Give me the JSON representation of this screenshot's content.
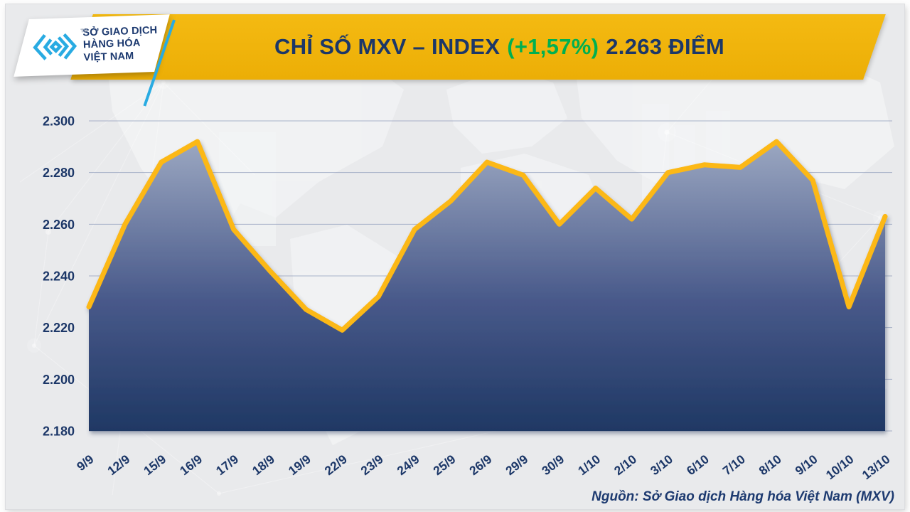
{
  "header": {
    "logo": {
      "lines": [
        "SỞ GIAO DỊCH",
        "HÀNG HÓA",
        "VIỆT NAM"
      ],
      "trademark": "TM"
    },
    "title": {
      "part1": "CHỈ SỐ MXV – INDEX",
      "change": "(+1,57%)",
      "part2": "2.263 ĐIỂM"
    }
  },
  "chart_data": {
    "type": "area",
    "title": "CHỈ SỐ MXV – INDEX (+1,57%) 2.263 ĐIỂM",
    "series_name": "MXV-Index",
    "categories": [
      "9/9",
      "12/9",
      "15/9",
      "16/9",
      "17/9",
      "18/9",
      "19/9",
      "22/9",
      "23/9",
      "24/9",
      "25/9",
      "26/9",
      "29/9",
      "30/9",
      "1/10",
      "2/10",
      "3/10",
      "6/10",
      "7/10",
      "8/10",
      "9/10",
      "10/10",
      "13/10"
    ],
    "values": [
      2228,
      2260,
      2284,
      2292,
      2258,
      2242,
      2227,
      2219,
      2232,
      2258,
      2269,
      2284,
      2279,
      2260,
      2274,
      2262,
      2280,
      2283,
      2282,
      2292,
      2277,
      2228,
      2263
    ],
    "last_value_label": "2.263",
    "change_label": "+1,57%",
    "y_ticks": [
      {
        "value": 2300,
        "label": "2.300"
      },
      {
        "value": 2280,
        "label": "2.280"
      },
      {
        "value": 2260,
        "label": "2.260"
      },
      {
        "value": 2240,
        "label": "2.240"
      },
      {
        "value": 2220,
        "label": "2.220"
      },
      {
        "value": 2200,
        "label": "2.200"
      },
      {
        "value": 2180,
        "label": "2.180"
      }
    ],
    "ylim": [
      2180,
      2300
    ],
    "xlabel": "",
    "ylabel": "",
    "grid": true,
    "legend": "none"
  },
  "footer": {
    "source": "Nguồn: Sở Giao dịch Hàng hóa Việt Nam (MXV)"
  },
  "colors": {
    "line_gold": "#fcb813",
    "banner_gold": "#f1b50c",
    "navy": "#1c3768",
    "green": "#00b050",
    "logo_blue": "#29abe2",
    "fill_top": "#9ba7c1",
    "fill_mid": "#48598a",
    "fill_bottom": "#1f3864",
    "grid": "#96a2be",
    "background": "#e9eaec"
  }
}
